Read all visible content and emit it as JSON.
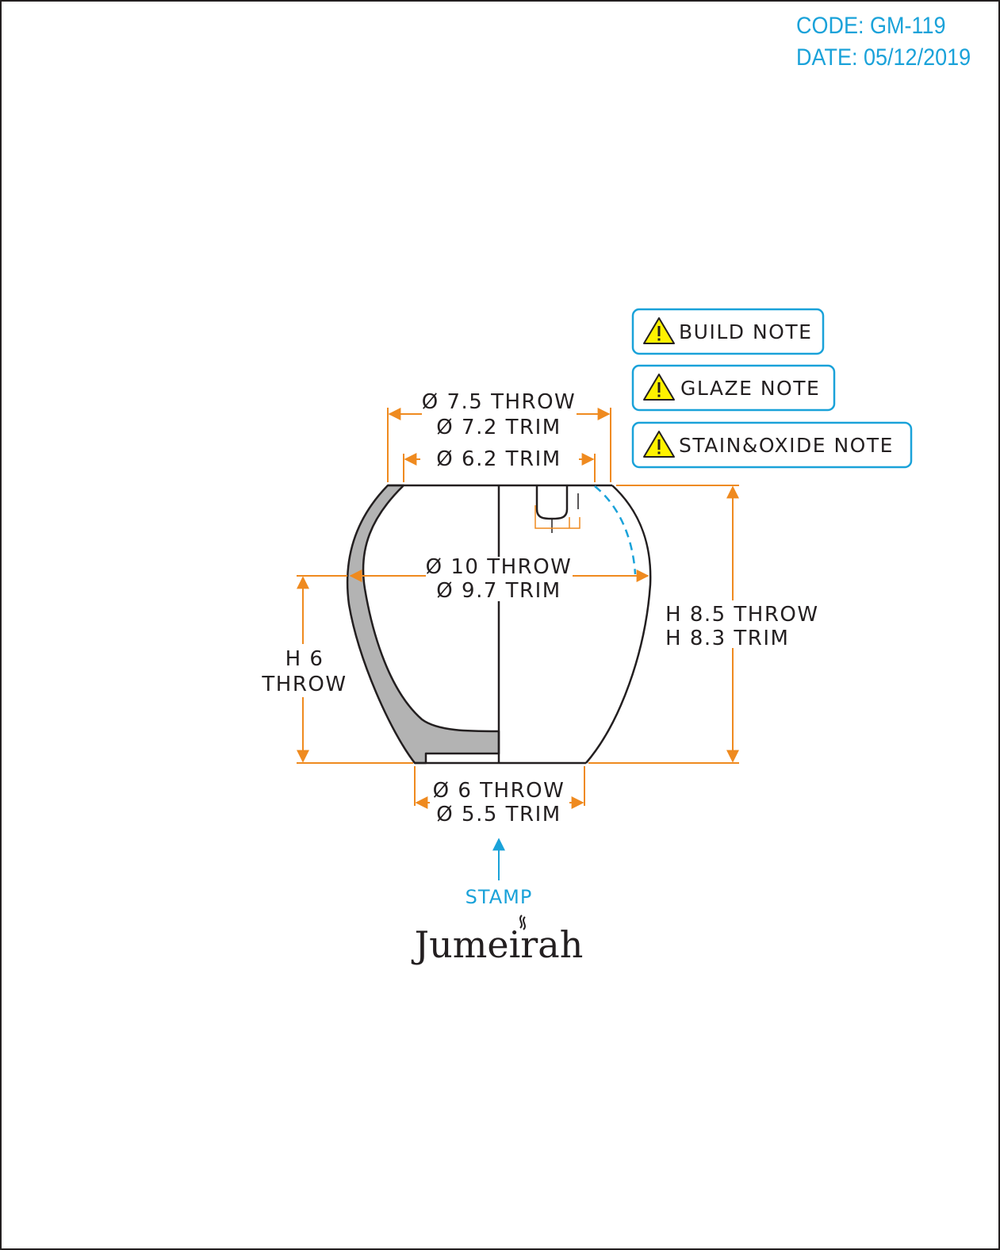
{
  "header": {
    "code": "CODE: GM-119",
    "date": "DATE: 05/12/2019"
  },
  "notes": [
    {
      "label": "BUILD NOTE",
      "icon": "warning-icon"
    },
    {
      "label": "GLAZE NOTE",
      "icon": "warning-icon"
    },
    {
      "label": "STAIN&OXIDE NOTE",
      "icon": "warning-icon"
    }
  ],
  "dimensions": {
    "rim_throw": "Ø 7.5 THROW",
    "rim_trim": "Ø 7.2 TRIM",
    "inner_rim_trim": "Ø 6.2 TRIM",
    "belly_throw": "Ø 10 THROW",
    "belly_trim": "Ø 9.7 TRIM",
    "height_throw": "H 8.5 THROW",
    "height_trim": "H 8.3 TRIM",
    "lower_height_line1": "H 6",
    "lower_height_line2": "THROW",
    "base_throw": "Ø 6 THROW",
    "base_trim": "Ø 5.5 TRIM"
  },
  "stamp": {
    "label": "STAMP",
    "logo": "Jumeirah"
  },
  "colors": {
    "dimension": "#ef8a1f",
    "outline": "#231f20",
    "wall_section": "#b3b3b3",
    "accent": "#1aa2d9",
    "warning_fill": "#fff200"
  }
}
